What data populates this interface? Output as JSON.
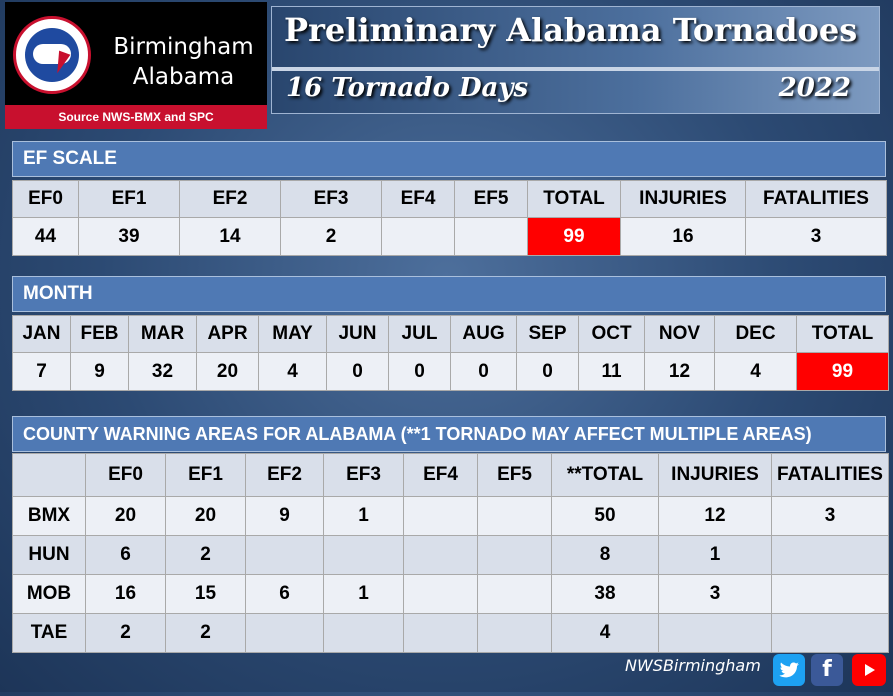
{
  "logo": {
    "city_line1": "Birmingham",
    "city_line2": "Alabama",
    "source": "Source NWS-BMX and SPC"
  },
  "header": {
    "title": "Preliminary Alabama Tornadoes",
    "subtitle": "16 Tornado Days",
    "year": "2022"
  },
  "ef_scale": {
    "heading": "EF SCALE",
    "columns": [
      "EF0",
      "EF1",
      "EF2",
      "EF3",
      "EF4",
      "EF5",
      "TOTAL",
      "INJURIES",
      "FATALITIES"
    ],
    "values": [
      "44",
      "39",
      "14",
      "2",
      "",
      "",
      "99",
      "16",
      "3"
    ]
  },
  "month": {
    "heading": "MONTH",
    "columns": [
      "JAN",
      "FEB",
      "MAR",
      "APR",
      "MAY",
      "JUN",
      "JUL",
      "AUG",
      "SEP",
      "OCT",
      "NOV",
      "DEC",
      "TOTAL"
    ],
    "values": [
      "7",
      "9",
      "32",
      "20",
      "4",
      "0",
      "0",
      "0",
      "0",
      "11",
      "12",
      "4",
      "99"
    ]
  },
  "county": {
    "heading": "COUNTY WARNING AREAS FOR ALABAMA (**1 TORNADO MAY AFFECT MULTIPLE AREAS)",
    "columns": [
      "",
      "EF0",
      "EF1",
      "EF2",
      "EF3",
      "EF4",
      "EF5",
      "**TOTAL",
      "INJURIES",
      "FATALITIES"
    ],
    "rows": [
      [
        "BMX",
        "20",
        "20",
        "9",
        "1",
        "",
        "",
        "50",
        "12",
        "3"
      ],
      [
        "HUN",
        "6",
        "2",
        "",
        "",
        "",
        "",
        "8",
        "1",
        ""
      ],
      [
        "MOB",
        "16",
        "15",
        "6",
        "1",
        "",
        "",
        "38",
        "3",
        ""
      ],
      [
        "TAE",
        "2",
        "2",
        "",
        "",
        "",
        "",
        "4",
        "",
        ""
      ]
    ]
  },
  "footer": {
    "handle": "NWSBirmingham",
    "twitter_icon": "twitter-icon",
    "facebook_icon": "facebook-icon",
    "youtube_icon": "youtube-icon"
  },
  "colors": {
    "highlight_red": "#ff0000",
    "section_blue": "#4f79b4",
    "logo_red": "#c8102e"
  }
}
